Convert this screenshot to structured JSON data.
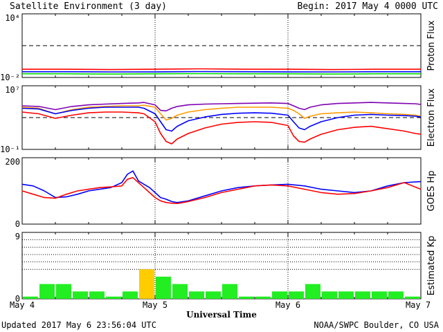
{
  "header": {
    "title": "Satellite Environment (3 day)",
    "begin": "Begin:  2017 May 4 0000 UTC"
  },
  "footer": {
    "updated": "Updated 2017 May  6 23:56:04 UTC",
    "credit": "NOAA/SWPC Boulder, CO USA",
    "xlabel": "Universal Time"
  },
  "x_ticks": [
    "May 4",
    "May 5",
    "May 6",
    "May 7"
  ],
  "chart_data": [
    {
      "type": "line",
      "panel": "proton",
      "ylabel": "Proton Flux",
      "yscale": "log",
      "ylim": [
        0.01,
        10000
      ],
      "tick_labels": [
        "10⁴",
        "10⁻²"
      ],
      "threshold": 10,
      "x_range_hours": [
        0,
        72
      ],
      "series": [
        {
          "color": "#ff0000",
          "values": [
            0.06,
            0.06,
            0.055,
            0.06,
            0.065,
            0.06,
            0.06,
            0.055,
            0.06,
            0.06
          ]
        },
        {
          "color": "#0000ff",
          "values": [
            0.035,
            0.035,
            0.033,
            0.034,
            0.036,
            0.035,
            0.034,
            0.033,
            0.035,
            0.035
          ]
        },
        {
          "color": "#00dd00",
          "values": [
            0.022,
            0.022,
            0.021,
            0.022,
            0.023,
            0.022,
            0.022,
            0.021,
            0.022,
            0.022
          ]
        }
      ]
    },
    {
      "type": "line",
      "panel": "electron",
      "ylabel": "Electron Flux",
      "yscale": "log",
      "ylim": [
        0.1,
        10000000
      ],
      "tick_labels": [
        "10⁷",
        "10⁻¹"
      ],
      "threshold": 1000,
      "x_hours": [
        0,
        3,
        6,
        9,
        12,
        15,
        18,
        21,
        22,
        24,
        25,
        26,
        27,
        28,
        30,
        33,
        36,
        39,
        42,
        45,
        48,
        49,
        50,
        51,
        52,
        54,
        57,
        60,
        63,
        66,
        69,
        71,
        72
      ],
      "series": [
        {
          "color": "#7f00b2",
          "values": [
            30000,
            25000,
            10000,
            25000,
            40000,
            50000,
            60000,
            70000,
            80000,
            40000,
            8000,
            7000,
            15000,
            25000,
            40000,
            50000,
            55000,
            60000,
            65000,
            70000,
            60000,
            30000,
            15000,
            10000,
            20000,
            40000,
            60000,
            70000,
            80000,
            70000,
            60000,
            55000,
            45000
          ]
        },
        {
          "color": "#ff9900",
          "values": [
            20000,
            15000,
            3000,
            10000,
            20000,
            25000,
            30000,
            30000,
            35000,
            20000,
            3000,
            500,
            800,
            2000,
            5000,
            10000,
            15000,
            20000,
            20000,
            20000,
            15000,
            8000,
            3000,
            800,
            1500,
            3000,
            4000,
            5000,
            4000,
            3000,
            2500,
            2000,
            1500
          ]
        },
        {
          "color": "#0000ff",
          "values": [
            15000,
            12000,
            3000,
            8000,
            15000,
            20000,
            20000,
            20000,
            15000,
            3000,
            300,
            30,
            20,
            80,
            400,
            1200,
            2500,
            3500,
            4000,
            3500,
            2000,
            300,
            50,
            30,
            80,
            300,
            1000,
            2000,
            2500,
            2000,
            1800,
            1500,
            1200
          ]
        },
        {
          "color": "#ff0000",
          "values": [
            5000,
            3000,
            800,
            2000,
            4000,
            5000,
            5000,
            4000,
            3000,
            300,
            10,
            1,
            0.5,
            2,
            10,
            50,
            150,
            250,
            300,
            250,
            100,
            5,
            1,
            0.8,
            2,
            8,
            30,
            60,
            80,
            40,
            20,
            10,
            8
          ]
        }
      ]
    },
    {
      "type": "line",
      "panel": "goes_hp",
      "ylabel": "GOES Hp",
      "ylim": [
        0,
        200
      ],
      "tick_labels": [
        "200",
        "0"
      ],
      "x_hours": [
        0,
        2,
        4,
        6,
        8,
        10,
        12,
        14,
        16,
        18,
        19,
        20,
        21,
        22,
        23,
        24,
        25,
        26,
        27,
        28,
        30,
        33,
        36,
        39,
        42,
        45,
        48,
        51,
        54,
        57,
        60,
        63,
        66,
        69,
        72
      ],
      "series": [
        {
          "color": "#0000ff",
          "values": [
            120,
            115,
            100,
            80,
            82,
            90,
            100,
            105,
            110,
            125,
            150,
            160,
            130,
            120,
            110,
            95,
            80,
            75,
            68,
            65,
            70,
            85,
            100,
            110,
            115,
            118,
            120,
            115,
            105,
            100,
            95,
            100,
            115,
            125,
            128
          ]
        },
        {
          "color": "#ff0000",
          "values": [
            100,
            90,
            80,
            78,
            90,
            100,
            105,
            110,
            112,
            115,
            135,
            140,
            125,
            110,
            95,
            80,
            70,
            65,
            63,
            62,
            68,
            80,
            95,
            105,
            115,
            118,
            115,
            105,
            95,
            90,
            92,
            100,
            110,
            125,
            105
          ]
        }
      ]
    },
    {
      "type": "bar",
      "panel": "kp",
      "ylabel": "Estimated Kp",
      "ylim": [
        0,
        9
      ],
      "tick_labels": [
        "9",
        "0"
      ],
      "grid_levels": [
        4,
        5,
        6,
        7,
        8
      ],
      "bar_hours": 3,
      "values": [
        0.3,
        2,
        2,
        1,
        1,
        0.3,
        1,
        4,
        3,
        2,
        1,
        1,
        2,
        0.3,
        0.3,
        1,
        1,
        2,
        1,
        1,
        1,
        1,
        1,
        0.3
      ],
      "colors": {
        "quiet": "#22ee22",
        "active": "#ffcc00"
      }
    }
  ]
}
